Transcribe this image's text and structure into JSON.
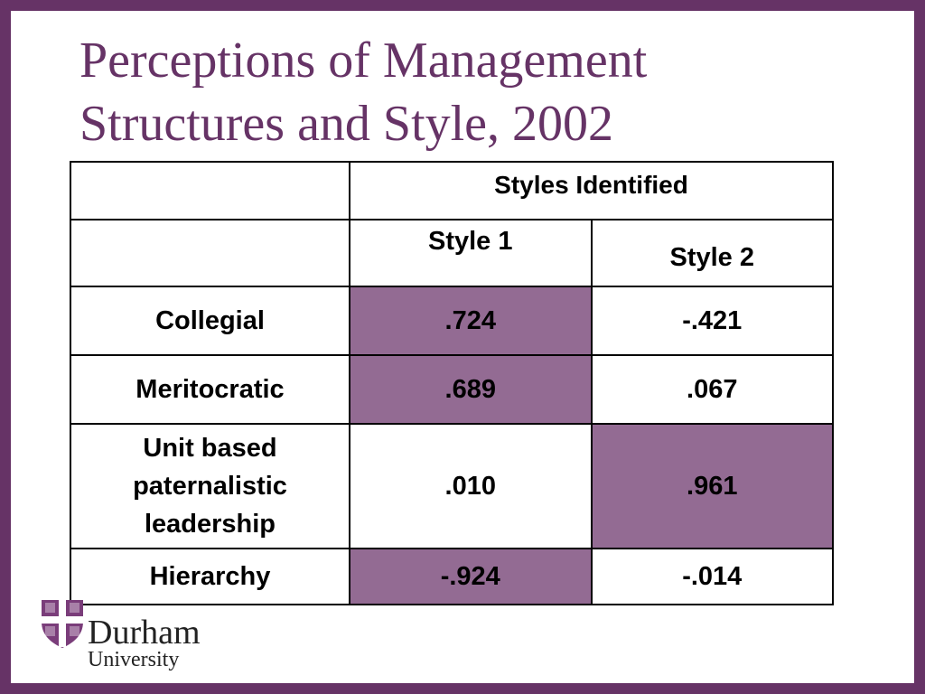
{
  "slide": {
    "title_line1": "Perceptions of Management",
    "title_line2": "Structures and Style, 2002"
  },
  "table": {
    "group_header": "Styles Identified",
    "columns": [
      "Style 1",
      "Style 2"
    ],
    "rows": [
      {
        "label": "Collegial",
        "style1": ".724",
        "style2": "-.421"
      },
      {
        "label": "Meritocratic",
        "style1": ".689",
        "style2": ".067"
      },
      {
        "label_lines": [
          "Unit based",
          "paternalistic",
          "leadership"
        ],
        "style1": ".010",
        "style2": ".961"
      },
      {
        "label": "Hierarchy",
        "style1": "-.924",
        "style2": "-.014"
      }
    ],
    "highlight_color": "#936b93"
  },
  "logo": {
    "name": "Durham",
    "subtitle": "University",
    "icon": "durham-cross-shield-icon"
  },
  "theme": {
    "border_color": "#663366",
    "title_color": "#663366"
  }
}
